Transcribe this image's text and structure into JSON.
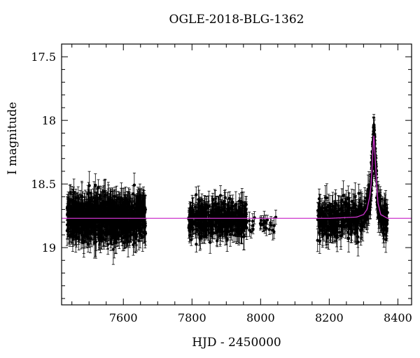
{
  "chart_data": {
    "type": "scatter",
    "title": "OGLE-2018-BLG-1362",
    "xlabel": "HJD - 2450000",
    "ylabel": "I magnitude",
    "xlim": [
      7420,
      8440
    ],
    "ylim": [
      19.45,
      17.4
    ],
    "y_inverted": true,
    "xticks": [
      7600,
      7800,
      8000,
      8200,
      8400
    ],
    "xtick_labels": [
      "7600",
      "7800",
      "8000",
      "8200",
      "8400"
    ],
    "yticks": [
      17.5,
      18,
      18.5,
      19
    ],
    "ytick_labels": [
      "17.5",
      "18",
      "18.5",
      "19"
    ],
    "grid": false,
    "colors": {
      "points": "#000000",
      "model": "#cc33cc"
    },
    "series": [
      {
        "type": "scatter_errorbar",
        "seasons": [
          {
            "x_range": [
              7435,
              7665
            ],
            "baseline": 18.77,
            "scatter": 0.16,
            "error": 0.1,
            "count": 900
          },
          {
            "x_range": [
              7790,
              7960
            ],
            "baseline": 18.78,
            "scatter": 0.12,
            "error": 0.09,
            "count": 420
          },
          {
            "x_range": [
              7960,
              8045
            ],
            "baseline": 18.82,
            "scatter": 0.07,
            "error": 0.06,
            "count": 25
          },
          {
            "x_range": [
              8165,
              8370
            ],
            "baseline": 18.78,
            "scatter": 0.13,
            "error": 0.09,
            "count": 500
          }
        ],
        "peak": {
          "x": 8330,
          "magnitude": 17.9
        }
      },
      {
        "type": "line",
        "x": [
          7420,
          8200,
          8280,
          8300,
          8310,
          8318,
          8322,
          8326,
          8328,
          8330,
          8332,
          8334,
          8338,
          8342,
          8350,
          8370,
          8440
        ],
        "y": [
          18.77,
          18.77,
          18.76,
          18.74,
          18.7,
          18.6,
          18.5,
          18.3,
          18.2,
          18.12,
          18.2,
          18.3,
          18.5,
          18.65,
          18.74,
          18.77,
          18.77
        ]
      }
    ]
  }
}
